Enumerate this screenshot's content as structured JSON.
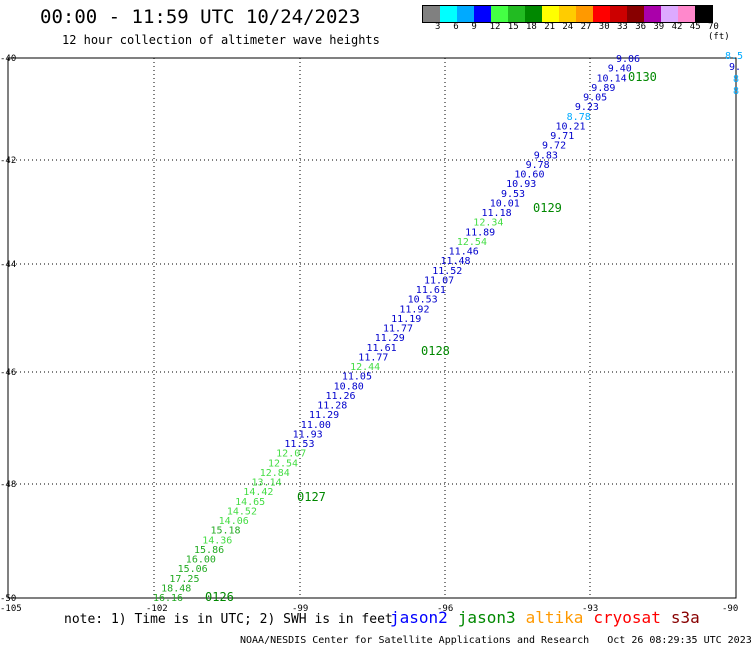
{
  "header": {
    "title": "00:00 - 11:59 UTC 10/24/2023",
    "subtitle": "12 hour collection of altimeter wave heights"
  },
  "color_scale": {
    "labels": [
      "3",
      "6",
      "9",
      "12",
      "15",
      "18",
      "21",
      "24",
      "27",
      "30",
      "33",
      "36",
      "39",
      "42",
      "45",
      "70 (ft)"
    ],
    "colors": [
      "#808080",
      "#00ffff",
      "#00aaff",
      "#0000ff",
      "#44ff44",
      "#22bb22",
      "#008800",
      "#ffff00",
      "#ffcc00",
      "#ff9900",
      "#ff0000",
      "#cc0000",
      "#880000",
      "#aa00aa",
      "#ddaaff",
      "#ff88cc",
      "#000000"
    ]
  },
  "map": {
    "lat_labels": [
      "-40",
      "-42",
      "-44",
      "-46",
      "-48",
      "-50"
    ],
    "lon_labels": [
      "-105",
      "-102",
      "-99",
      "-96",
      "-93",
      "-90"
    ],
    "pass_labels": [
      "0130",
      "0129",
      "0128",
      "0127",
      "0126"
    ],
    "pass_color": "#008800",
    "observations": [
      {
        "v": "9.06",
        "c": "#0000cc"
      },
      {
        "v": "9.40",
        "c": "#0000cc"
      },
      {
        "v": "10.14",
        "c": "#0000cc"
      },
      {
        "v": "9.89",
        "c": "#0000cc"
      },
      {
        "v": "9.05",
        "c": "#0000cc"
      },
      {
        "v": "9.23",
        "c": "#0000cc"
      },
      {
        "v": "8.78",
        "c": "#00aaff"
      },
      {
        "v": "10.21",
        "c": "#0000cc"
      },
      {
        "v": "9.71",
        "c": "#0000cc"
      },
      {
        "v": "9.72",
        "c": "#0000cc"
      },
      {
        "v": "9.83",
        "c": "#0000cc"
      },
      {
        "v": "9.78",
        "c": "#0000cc"
      },
      {
        "v": "10.60",
        "c": "#0000cc"
      },
      {
        "v": "10.93",
        "c": "#0000cc"
      },
      {
        "v": "9.53",
        "c": "#0000cc"
      },
      {
        "v": "10.01",
        "c": "#0000cc"
      },
      {
        "v": "11.18",
        "c": "#0000cc"
      },
      {
        "v": "12.34",
        "c": "#44dd44"
      },
      {
        "v": "11.89",
        "c": "#0000cc"
      },
      {
        "v": "12.54",
        "c": "#44dd44"
      },
      {
        "v": "11.46",
        "c": "#0000cc"
      },
      {
        "v": "11.48",
        "c": "#0000cc"
      },
      {
        "v": "11.52",
        "c": "#0000cc"
      },
      {
        "v": "11.07",
        "c": "#0000cc"
      },
      {
        "v": "11.61",
        "c": "#0000cc"
      },
      {
        "v": "10.53",
        "c": "#0000cc"
      },
      {
        "v": "11.92",
        "c": "#0000cc"
      },
      {
        "v": "11.19",
        "c": "#0000cc"
      },
      {
        "v": "11.77",
        "c": "#0000cc"
      },
      {
        "v": "11.29",
        "c": "#0000cc"
      },
      {
        "v": "11.61",
        "c": "#0000cc"
      },
      {
        "v": "11.77",
        "c": "#0000cc"
      },
      {
        "v": "12.44",
        "c": "#44dd44"
      },
      {
        "v": "11.05",
        "c": "#0000cc"
      },
      {
        "v": "10.80",
        "c": "#0000cc"
      },
      {
        "v": "11.26",
        "c": "#0000cc"
      },
      {
        "v": "11.28",
        "c": "#0000cc"
      },
      {
        "v": "11.29",
        "c": "#0000cc"
      },
      {
        "v": "11.00",
        "c": "#0000cc"
      },
      {
        "v": "11.93",
        "c": "#0000cc"
      },
      {
        "v": "11.53",
        "c": "#0000cc"
      },
      {
        "v": "12.07",
        "c": "#44dd44"
      },
      {
        "v": "12.54",
        "c": "#44dd44"
      },
      {
        "v": "12.84",
        "c": "#44dd44"
      },
      {
        "v": "13.14",
        "c": "#44dd44"
      },
      {
        "v": "14.42",
        "c": "#44dd44"
      },
      {
        "v": "14.65",
        "c": "#44dd44"
      },
      {
        "v": "14.52",
        "c": "#44dd44"
      },
      {
        "v": "14.06",
        "c": "#44dd44"
      },
      {
        "v": "15.18",
        "c": "#22aa22"
      },
      {
        "v": "14.36",
        "c": "#44dd44"
      },
      {
        "v": "15.86",
        "c": "#22aa22"
      },
      {
        "v": "16.00",
        "c": "#22aa22"
      },
      {
        "v": "15.06",
        "c": "#22aa22"
      },
      {
        "v": "17.25",
        "c": "#22aa22"
      },
      {
        "v": "18.48",
        "c": "#22aa22"
      },
      {
        "v": "16.16",
        "c": "#22aa22"
      }
    ],
    "edge_values": [
      {
        "v": "8.5",
        "c": "#00aaff"
      },
      {
        "v": "9.",
        "c": "#0000cc"
      },
      {
        "v": "8",
        "c": "#00aaff"
      },
      {
        "v": "8",
        "c": "#00aaff"
      }
    ]
  },
  "note": "note: 1) Time is in UTC; 2) SWH is in feet",
  "legend": [
    {
      "label": "jason2",
      "color": "#0000ff"
    },
    {
      "label": "jason3",
      "color": "#008800"
    },
    {
      "label": "altika",
      "color": "#ff9900"
    },
    {
      "label": "cryosat",
      "color": "#ff0000"
    },
    {
      "label": "s3a",
      "color": "#880000"
    }
  ],
  "footer": "NOAA/NESDIS Center for Satellite Applications and Research   Oct 26 08:29:35 UTC 2023"
}
